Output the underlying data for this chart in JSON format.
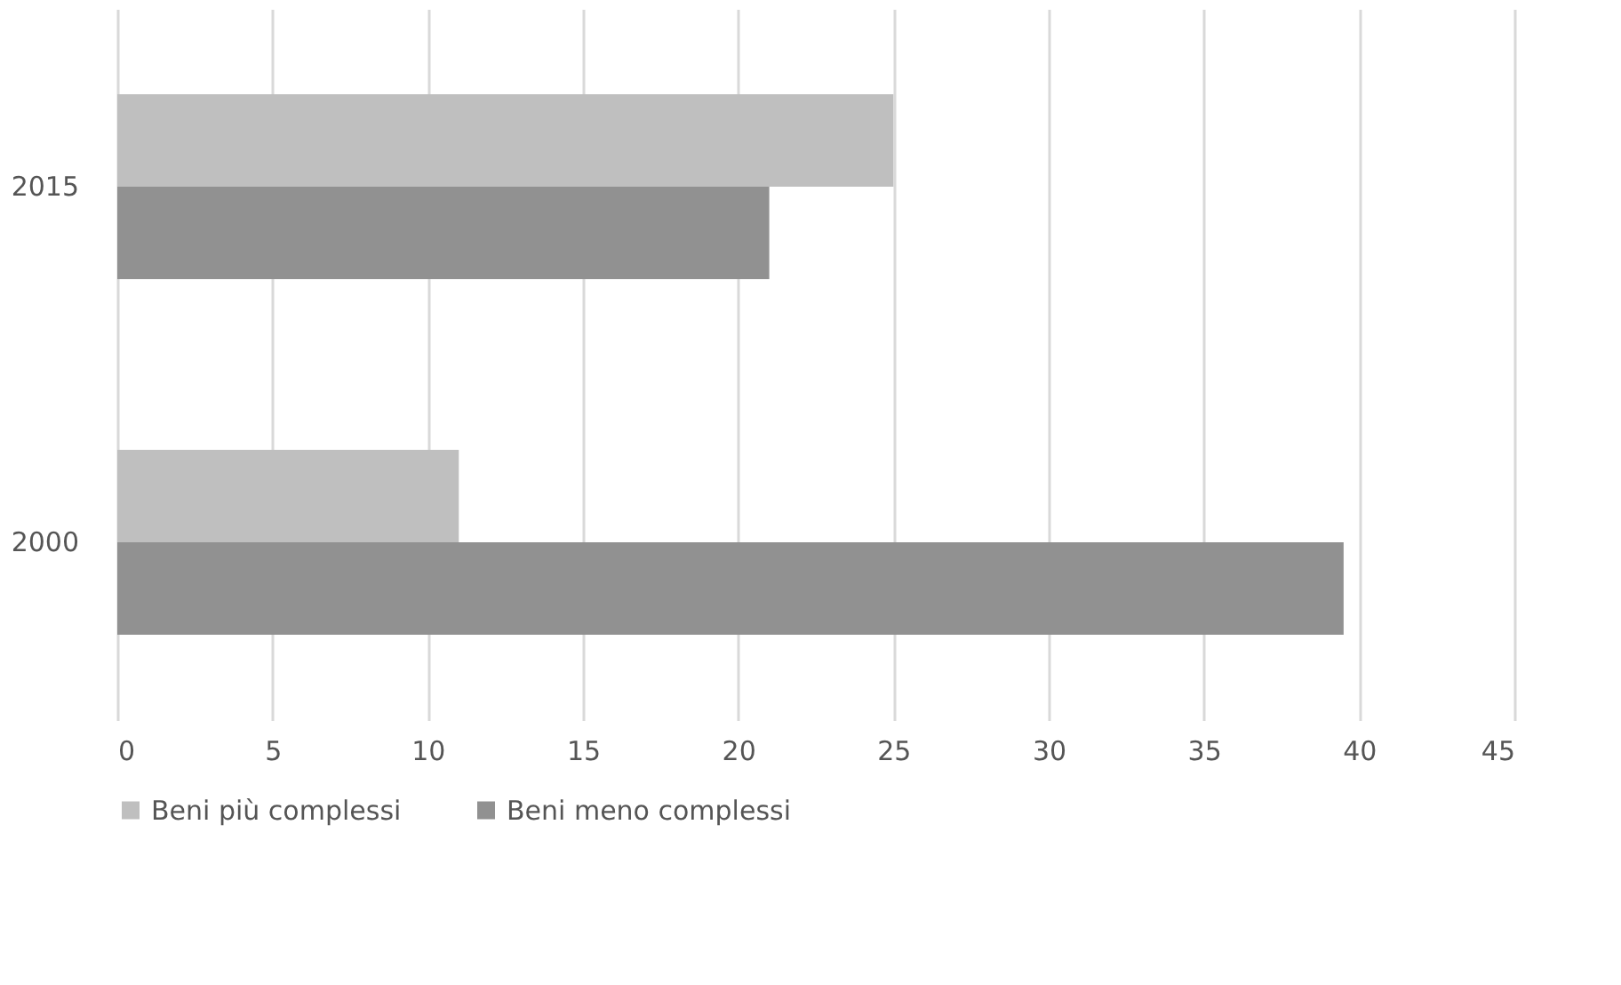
{
  "chart_data": {
    "type": "bar",
    "orientation": "horizontal",
    "categories": [
      "2015",
      "2000"
    ],
    "series": [
      {
        "name": "Beni più complessi",
        "color": "#bfbfbf",
        "values": [
          25,
          11
        ]
      },
      {
        "name": "Beni meno complessi",
        "color": "#919191",
        "values": [
          21,
          39.5
        ]
      }
    ],
    "xlim": [
      0,
      45
    ],
    "xticks": [
      0,
      5,
      10,
      15,
      20,
      25,
      30,
      35,
      40,
      45
    ],
    "grid": "x",
    "legend": "bottom"
  }
}
